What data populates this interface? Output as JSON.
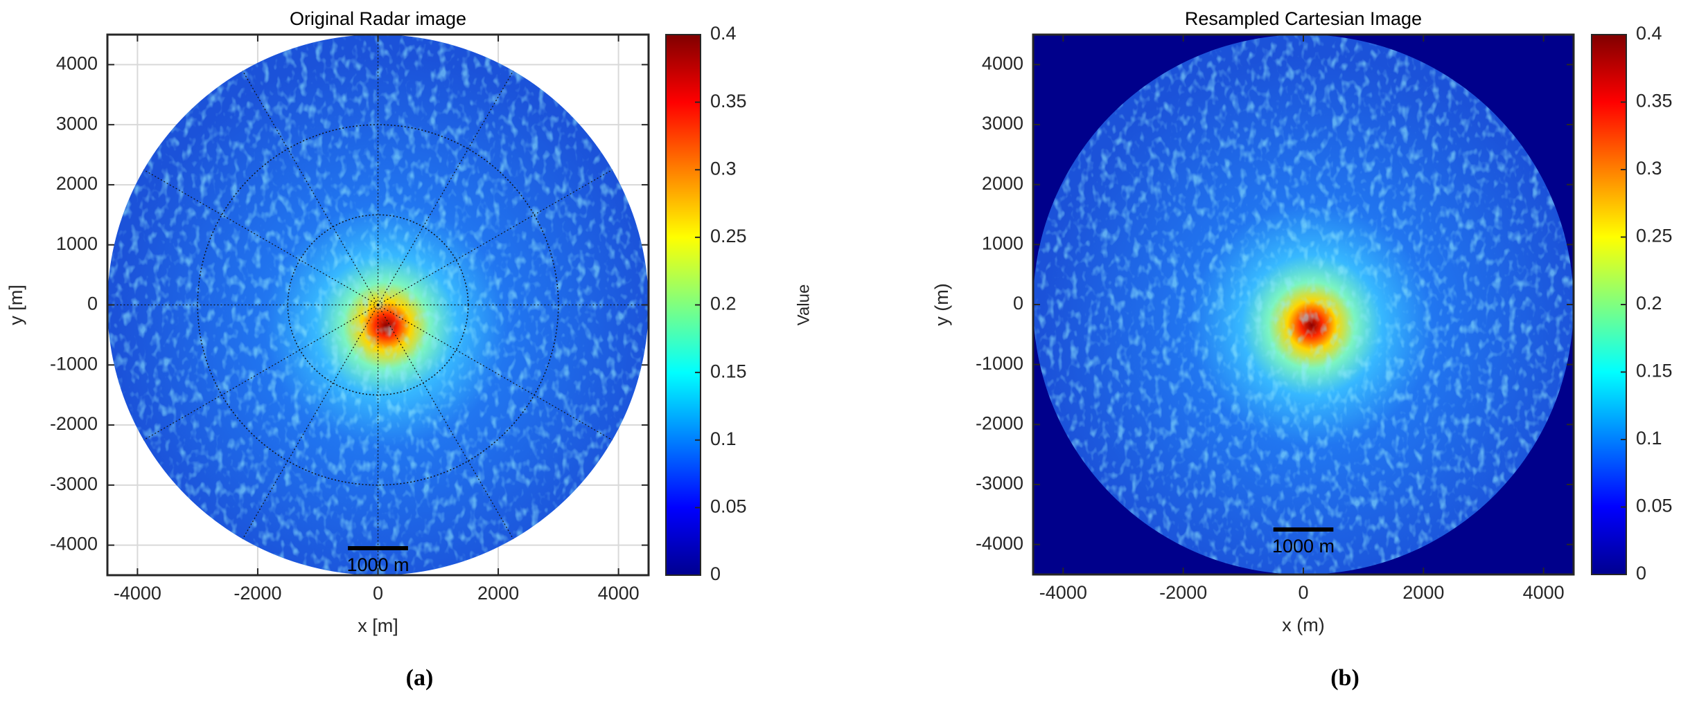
{
  "chart_data": [
    {
      "type": "image",
      "title": "Original Radar image",
      "x_label": "x [m]",
      "y_label": "y [m]",
      "xlim": [
        -4500,
        4500
      ],
      "ylim": [
        -4500,
        4500
      ],
      "xticks": [
        -4000,
        -2000,
        0,
        2000,
        4000
      ],
      "yticks": [
        -4000,
        -3000,
        -2000,
        -1000,
        0,
        1000,
        2000,
        3000,
        4000
      ],
      "grid": true,
      "background": "#ffffff",
      "range_rings": [
        1500,
        3000
      ],
      "colorbar": {
        "label": "Value",
        "lim": [
          0,
          0.4
        ],
        "ticks": [
          0,
          0.05,
          0.1,
          0.15,
          0.2,
          0.25,
          0.3,
          0.35,
          0.4
        ]
      },
      "scale_bar": {
        "label": "1000 m",
        "length": 1000
      },
      "caption": "(a)"
    },
    {
      "type": "image",
      "title": "Resampled Cartesian Image",
      "x_label": "x (m)",
      "y_label": "y (m)",
      "xlim": [
        -4500,
        4500
      ],
      "ylim": [
        -4500,
        4500
      ],
      "xticks": [
        -4000,
        -2000,
        0,
        2000,
        4000
      ],
      "yticks": [
        -4000,
        -3000,
        -2000,
        -1000,
        0,
        1000,
        2000,
        3000,
        4000
      ],
      "grid": false,
      "background": "#00008b",
      "range_rings": [],
      "colorbar": {
        "lim": [
          0,
          0.4
        ],
        "ticks": [
          0,
          0.05,
          0.1,
          0.15,
          0.2,
          0.25,
          0.3,
          0.35,
          0.4
        ]
      },
      "scale_bar": {
        "label": "1000 m",
        "length": 1000
      },
      "caption": "(b)"
    }
  ]
}
